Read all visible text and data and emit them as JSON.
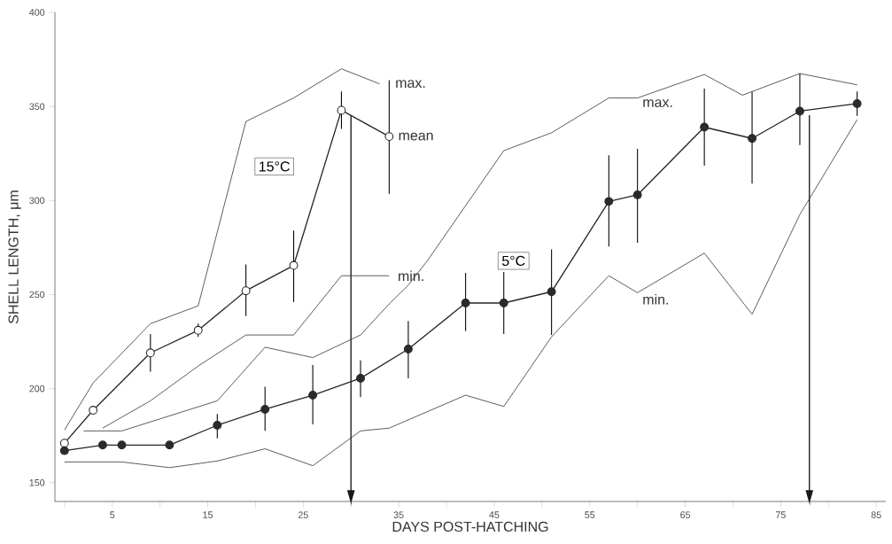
{
  "chart_data": {
    "type": "line",
    "xlabel": "DAYS POST-HATCHING",
    "ylabel": "SHELL LENGTH, μm",
    "xlim": [
      -1,
      86
    ],
    "ylim": [
      140,
      400
    ],
    "xticks": [
      {
        "value": 0,
        "label": null
      },
      5,
      {
        "value": 10,
        "label": null
      },
      15,
      {
        "value": 20,
        "label": null
      },
      25,
      {
        "value": 30,
        "label": null
      },
      35,
      {
        "value": 40,
        "label": null
      },
      45,
      {
        "value": 50,
        "label": null
      },
      55,
      {
        "value": 60,
        "label": null
      },
      65,
      {
        "value": 70,
        "label": null
      },
      75,
      {
        "value": 80,
        "label": null
      },
      85
    ],
    "yticks": [
      150,
      200,
      250,
      300,
      350,
      400
    ],
    "legend": false,
    "series": [
      {
        "name": "15°C",
        "color": "#ffffff",
        "marker": "circle",
        "x": [
          0,
          3,
          9,
          14,
          19,
          24,
          29,
          34
        ],
        "values": [
          171,
          188.5,
          219,
          231,
          252,
          265.5,
          348,
          334
        ],
        "errors": [
          null,
          null,
          [
            209,
            229
          ],
          [
            227.5,
            234.5
          ],
          [
            238.5,
            266
          ],
          [
            246,
            284
          ],
          [
            338,
            358
          ],
          [
            303.5,
            364
          ]
        ]
      },
      {
        "color": "#333333",
        "marker": "none",
        "x": [
          0,
          3,
          9,
          14,
          19,
          24,
          29,
          33
        ],
        "values": [
          178,
          203,
          234.5,
          244,
          342,
          354.5,
          370,
          362
        ]
      },
      {
        "color": "#333333",
        "marker": "none",
        "x": [
          4,
          9,
          14,
          19,
          24,
          29,
          34
        ],
        "values": [
          179,
          193.5,
          212,
          228.5,
          228.5,
          260,
          260
        ]
      },
      {
        "name": "5°C",
        "color": "#2a2a2a",
        "marker": "circle",
        "x": [
          0,
          4,
          6,
          11,
          16,
          21,
          26,
          31,
          36,
          42,
          46,
          51,
          57,
          60,
          67,
          72,
          77,
          83
        ],
        "values": [
          167,
          170,
          170,
          170,
          180.5,
          189,
          196.5,
          205.5,
          221,
          245.5,
          245.5,
          251.5,
          299.5,
          303,
          339,
          333,
          347.5,
          351.5
        ],
        "errors": [
          null,
          null,
          null,
          null,
          [
            173.5,
            186.5
          ],
          [
            177.5,
            201
          ],
          [
            181,
            212.5
          ],
          [
            195.5,
            215
          ],
          [
            205.5,
            236
          ],
          [
            230.5,
            261.5
          ],
          [
            229,
            262
          ],
          [
            228.5,
            274
          ],
          [
            275.5,
            324
          ],
          [
            277.5,
            327.5
          ],
          [
            318.5,
            359.5
          ],
          [
            309,
            358
          ],
          [
            329.5,
            367.5
          ],
          [
            345,
            358
          ]
        ]
      },
      {
        "color": "#333333",
        "marker": "none",
        "x": [
          2,
          6,
          16,
          21,
          26,
          31,
          34,
          36,
          38,
          46,
          51,
          57,
          60,
          67,
          71,
          77,
          83
        ],
        "values": [
          177.5,
          177.5,
          193.5,
          222,
          216.5,
          228.5,
          245,
          255,
          268,
          326.5,
          336,
          354.5,
          354.5,
          367,
          356,
          367.5,
          361.5
        ]
      },
      {
        "color": "#333333",
        "marker": "none",
        "x": [
          0,
          6,
          11,
          16,
          21,
          26,
          31,
          34,
          42,
          46,
          51,
          57,
          60,
          67,
          72,
          77,
          83
        ],
        "values": [
          161,
          161,
          158,
          161.5,
          168,
          159,
          177.5,
          179,
          196.5,
          190.5,
          227.5,
          260,
          251,
          272,
          239.5,
          292.5,
          343
        ]
      }
    ],
    "ref_lines": [
      {
        "axis": "x",
        "value": 30,
        "color": "#1a1a1a"
      },
      {
        "axis": "x",
        "value": 78,
        "color": "#1a1a1a"
      }
    ],
    "annotations": [
      {
        "text": "max.",
        "x": 33,
        "y": 362
      },
      {
        "text": "mean",
        "x": 34.8,
        "y": 334
      },
      {
        "text": "min.",
        "x": 34,
        "y": 260
      },
      {
        "text": "max.",
        "x": 60,
        "y": 354.5
      },
      {
        "text": "min.",
        "x": 60,
        "y": 251
      }
    ]
  }
}
